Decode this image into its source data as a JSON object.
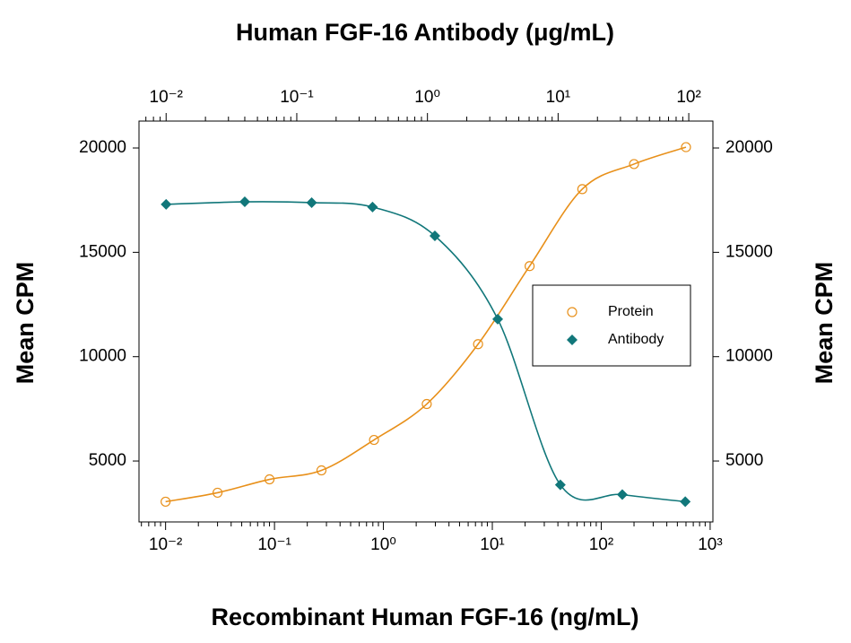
{
  "chart_data": {
    "type": "scatter",
    "x_label": "Recombinant Human FGF-16 (ng/mL)",
    "x2_label": "Human FGF-16 Antibody (μg/mL)",
    "y_label": "Mean CPM",
    "y2_label": "Mean CPM",
    "log_x": true,
    "xlim": [
      0.0057,
      1060
    ],
    "xticks": [
      {
        "value": 0.01,
        "label": "10⁻²"
      },
      {
        "value": 0.1,
        "label": "10⁻¹"
      },
      {
        "value": 1,
        "label": "10⁰"
      },
      {
        "value": 10,
        "label": "10¹"
      },
      {
        "value": 100,
        "label": "10²"
      },
      {
        "value": 1000,
        "label": "10³"
      }
    ],
    "x2lim": [
      0.0062,
      153
    ],
    "x2ticks": [
      {
        "value": 0.01,
        "label": "10⁻²"
      },
      {
        "value": 0.1,
        "label": "10⁻¹"
      },
      {
        "value": 1,
        "label": "10⁰"
      },
      {
        "value": 10,
        "label": "10¹"
      },
      {
        "value": 100,
        "label": "10²"
      }
    ],
    "ylim": [
      2080,
      21290
    ],
    "yticks": [
      5000,
      10000,
      15000,
      20000
    ],
    "y2lim": [
      2080,
      21290
    ],
    "y2ticks": [
      5000,
      10000,
      15000,
      20000
    ],
    "legend": "right",
    "series": [
      {
        "name": "Protein",
        "color": "#e8901a",
        "marker": "open-circle",
        "xaxis": "x",
        "x": [
          0.01,
          0.03,
          0.09,
          0.27,
          0.82,
          2.5,
          7.4,
          22,
          67,
          200,
          600
        ],
        "values": [
          3050,
          3480,
          4120,
          4550,
          6010,
          7730,
          10600,
          14340,
          18030,
          19230,
          20040
        ]
      },
      {
        "name": "Antibody",
        "color": "#11777a",
        "marker": "diamond",
        "xaxis": "x2",
        "x": [
          0.01,
          0.04,
          0.13,
          0.38,
          1.14,
          3.45,
          10.4,
          31,
          94
        ],
        "values": [
          17300,
          17420,
          17380,
          17170,
          15790,
          11800,
          3860,
          3390,
          3050
        ]
      }
    ]
  }
}
